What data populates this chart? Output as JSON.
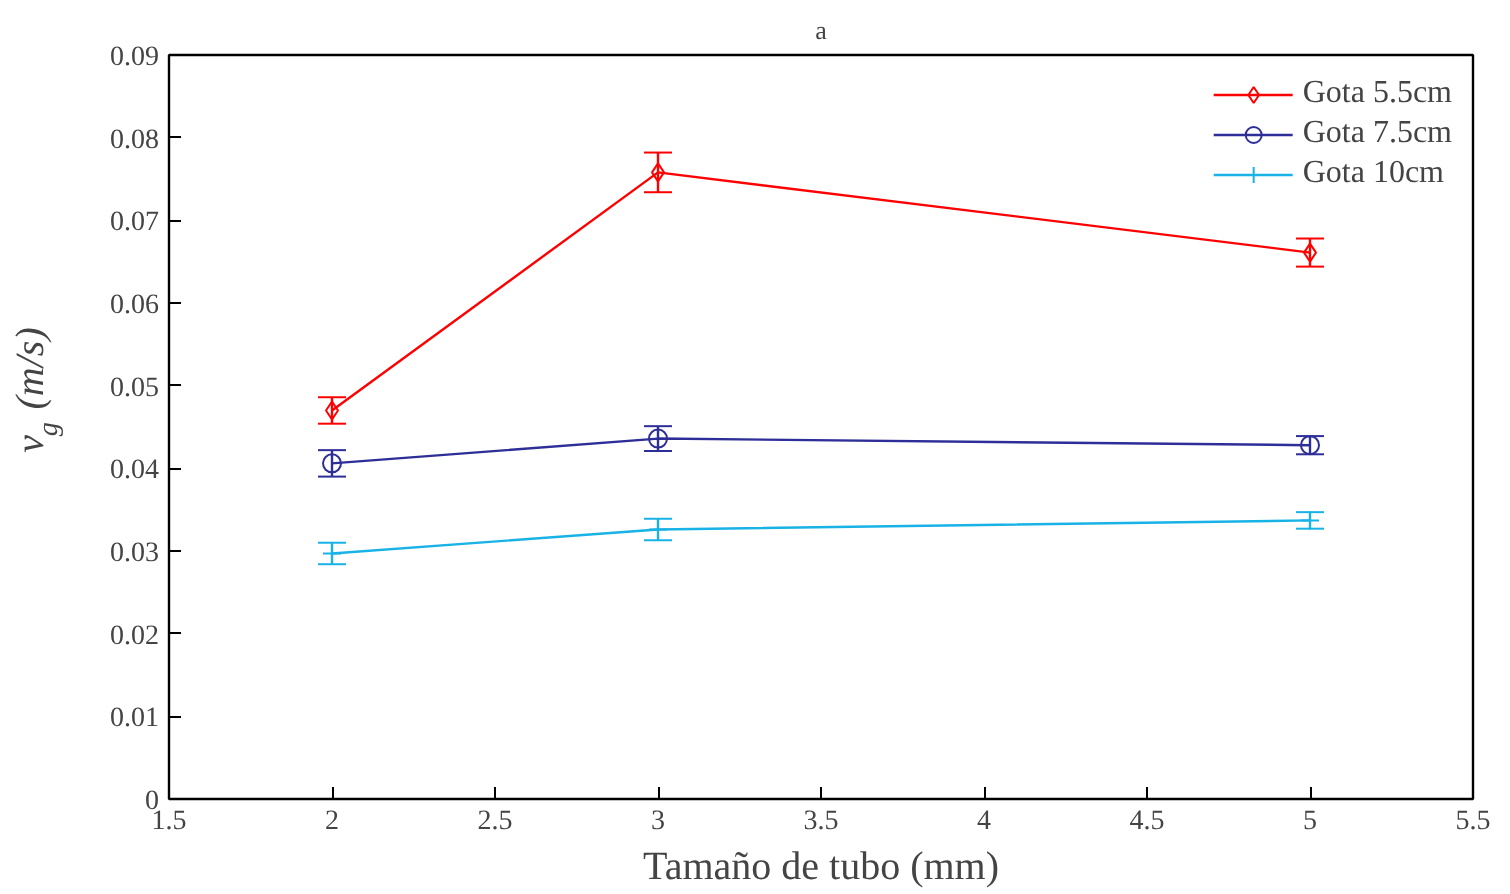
{
  "chart_data": {
    "type": "line",
    "title": "a",
    "xlabel": "Tamaño de tubo (mm)",
    "ylabel": "v$_{g}$ (m/s)",
    "x": [
      2,
      3,
      5
    ],
    "series": [
      {
        "name": "Gota 5.5cm",
        "color": "#ff0000",
        "marker": "diamond",
        "values": [
          0.047,
          0.0758,
          0.0661
        ],
        "errors": [
          0.0016,
          0.0024,
          0.0017
        ]
      },
      {
        "name": "Gota 7.5cm",
        "color": "#2e2e99",
        "marker": "circle",
        "values": [
          0.0406,
          0.0436,
          0.0428
        ],
        "errors": [
          0.0016,
          0.0015,
          0.0011
        ]
      },
      {
        "name": "Gota 10cm",
        "color": "#19b2e6",
        "marker": "cross",
        "values": [
          0.0297,
          0.0326,
          0.0337
        ],
        "errors": [
          0.0013,
          0.0013,
          0.001
        ]
      }
    ],
    "xlim": [
      1.5,
      5.5
    ],
    "xticks": [
      1.5,
      2,
      2.5,
      3,
      3.5,
      4,
      4.5,
      5,
      5.5
    ],
    "ylim": [
      0,
      0.09
    ],
    "yticks": [
      0,
      0.01,
      0.02,
      0.03,
      0.04,
      0.05,
      0.06,
      0.07,
      0.08,
      0.09
    ],
    "grid": false,
    "legend": "top right"
  }
}
